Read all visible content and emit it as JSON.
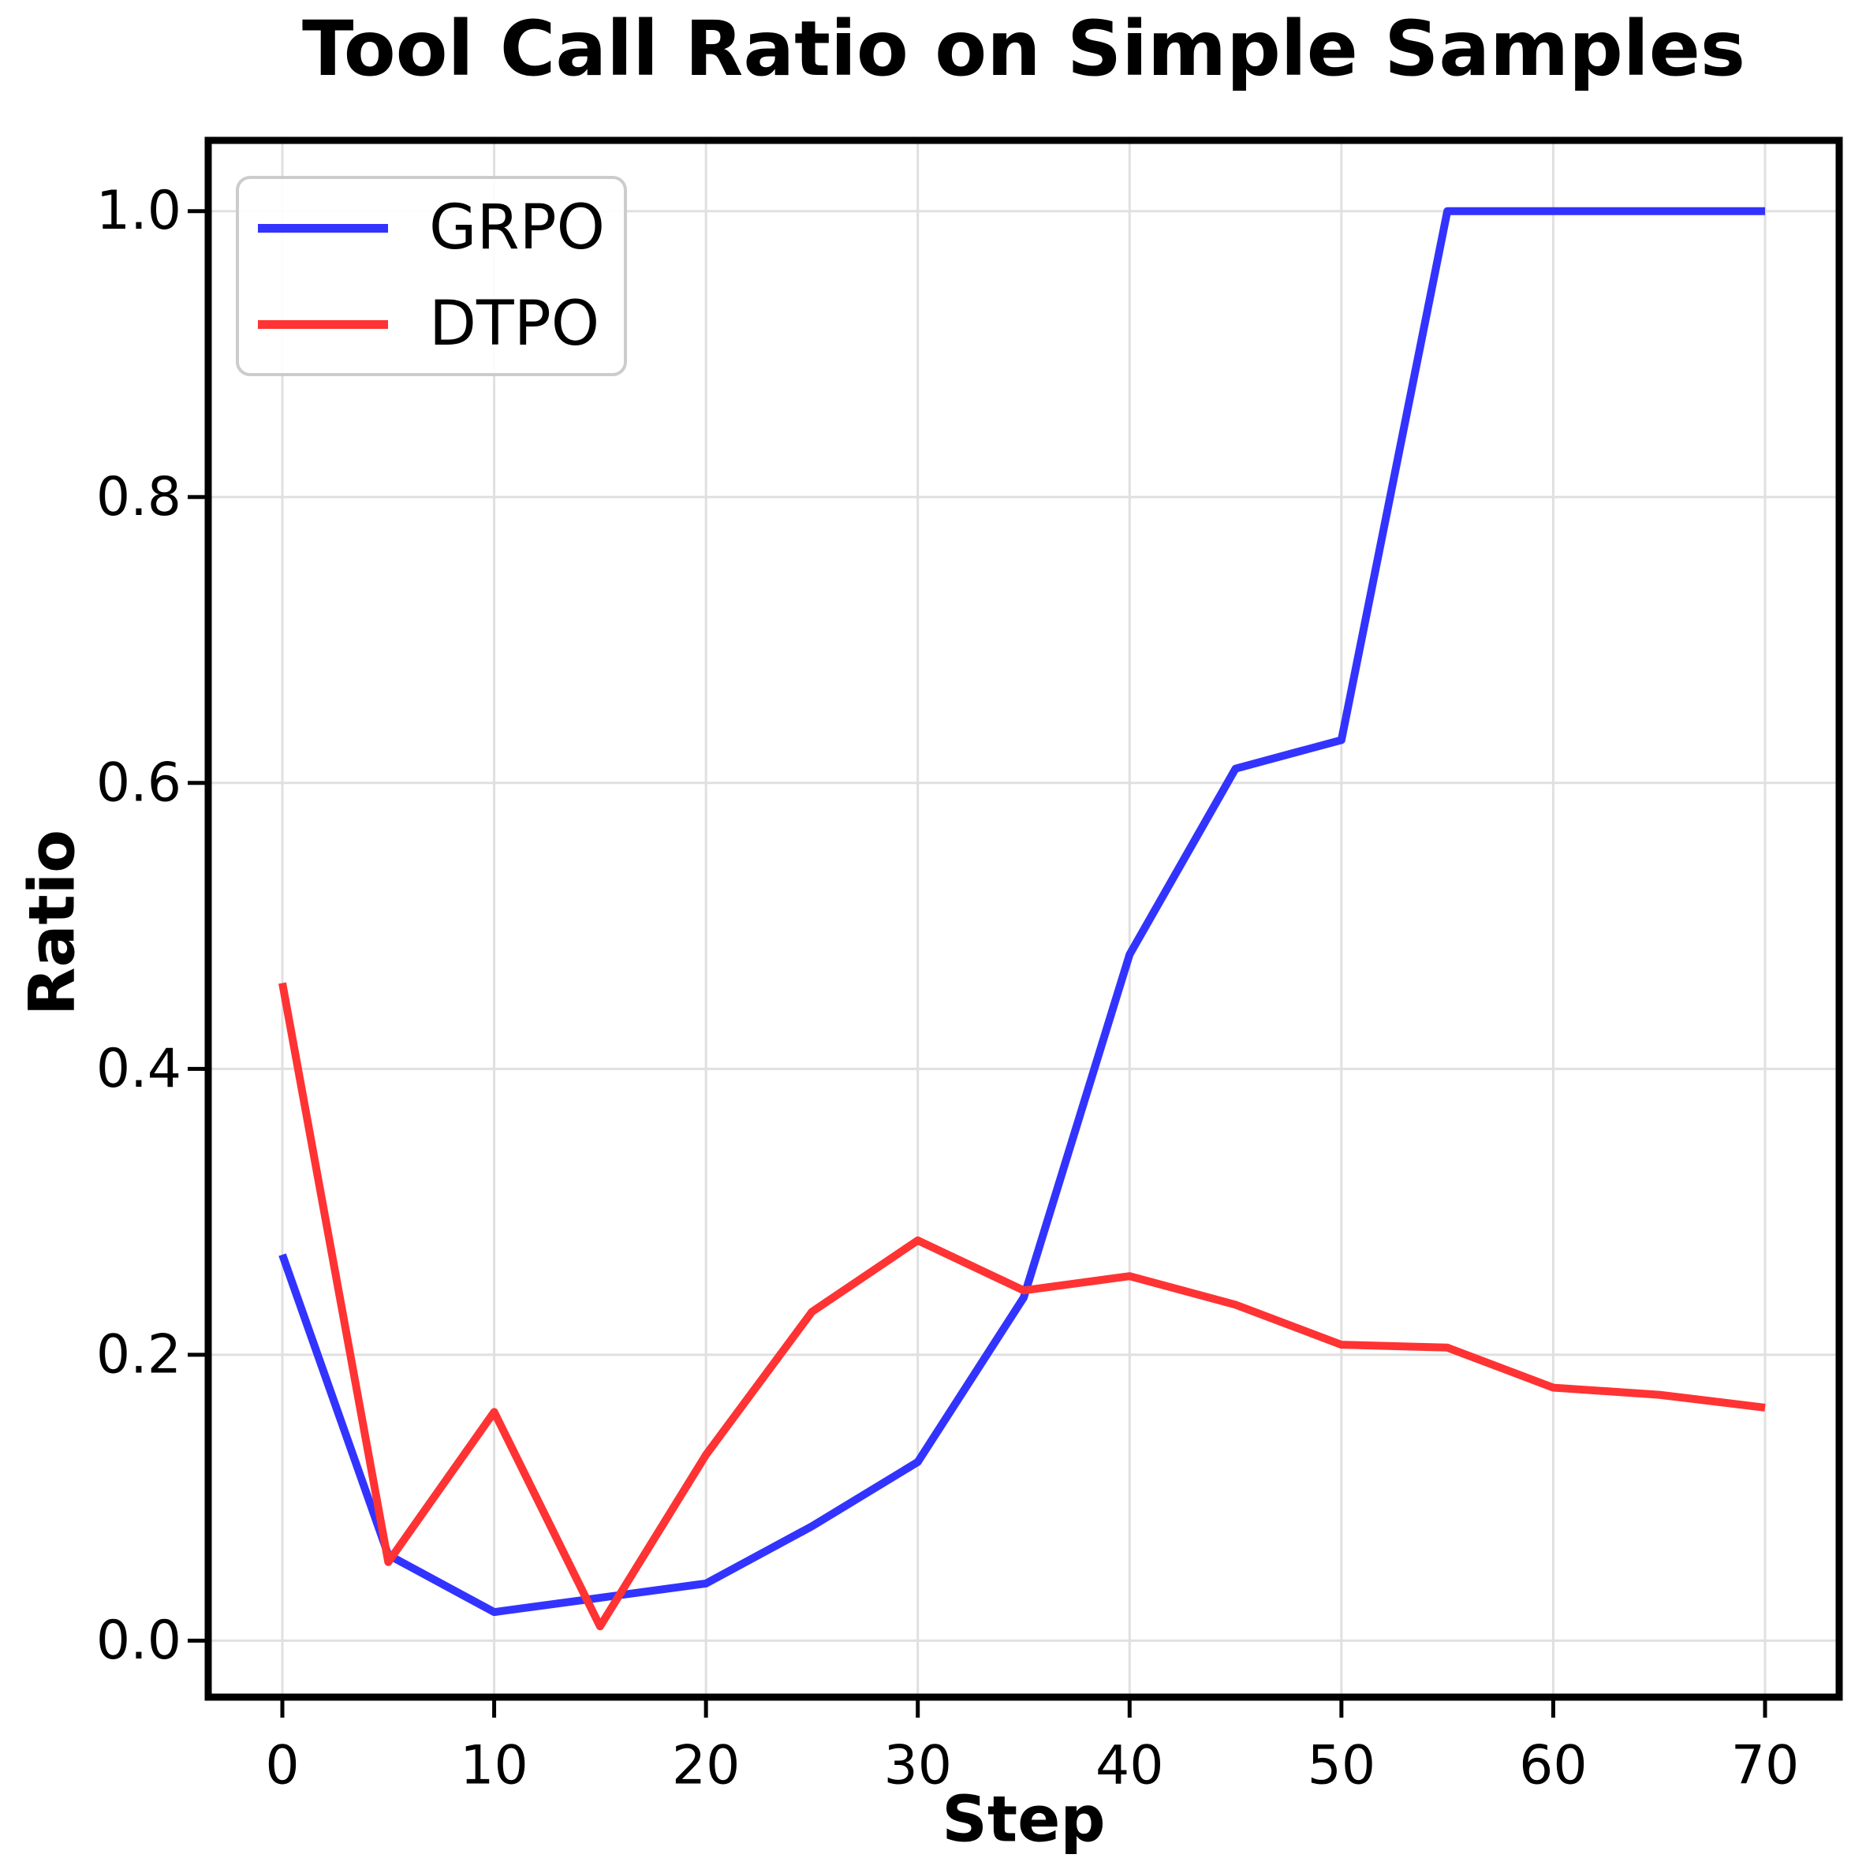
{
  "chart_data": {
    "type": "line",
    "title": "Tool Call Ratio on Simple Samples",
    "xlabel": "Step",
    "ylabel": "Ratio",
    "x": [
      0,
      5,
      10,
      15,
      20,
      25,
      30,
      35,
      40,
      45,
      50,
      55,
      60,
      65,
      70
    ],
    "series": [
      {
        "name": "GRPO",
        "color": "#3333FF",
        "values": [
          0.27,
          0.06,
          0.02,
          0.03,
          0.04,
          0.08,
          0.125,
          0.24,
          0.48,
          0.61,
          0.63,
          1.0,
          1.0,
          1.0,
          1.0
        ]
      },
      {
        "name": "DTPO",
        "color": "#FF3333",
        "values": [
          0.46,
          0.055,
          0.16,
          0.01,
          0.13,
          0.23,
          0.28,
          0.245,
          0.255,
          0.235,
          0.207,
          0.205,
          0.177,
          0.172,
          0.163
        ]
      }
    ],
    "xticks": [
      {
        "v": 0,
        "label": "0"
      },
      {
        "v": 10,
        "label": "10"
      },
      {
        "v": 20,
        "label": "20"
      },
      {
        "v": 30,
        "label": "30"
      },
      {
        "v": 40,
        "label": "40"
      },
      {
        "v": 50,
        "label": "50"
      },
      {
        "v": 60,
        "label": "60"
      },
      {
        "v": 70,
        "label": "70"
      }
    ],
    "yticks": [
      {
        "v": 0.0,
        "label": "0.0"
      },
      {
        "v": 0.2,
        "label": "0.2"
      },
      {
        "v": 0.4,
        "label": "0.4"
      },
      {
        "v": 0.6,
        "label": "0.6"
      },
      {
        "v": 0.8,
        "label": "0.8"
      },
      {
        "v": 1.0,
        "label": "1.0"
      }
    ],
    "xlim": [
      -3.5,
      73.5
    ],
    "ylim": [
      -0.0395,
      1.0495
    ],
    "grid": true,
    "legend_position": "upper-left",
    "colors": {
      "background": "#FFFFFF",
      "grid": "#E0E0E0",
      "spine": "#000000",
      "text": "#000000",
      "legend_border": "#CCCCCC"
    }
  }
}
